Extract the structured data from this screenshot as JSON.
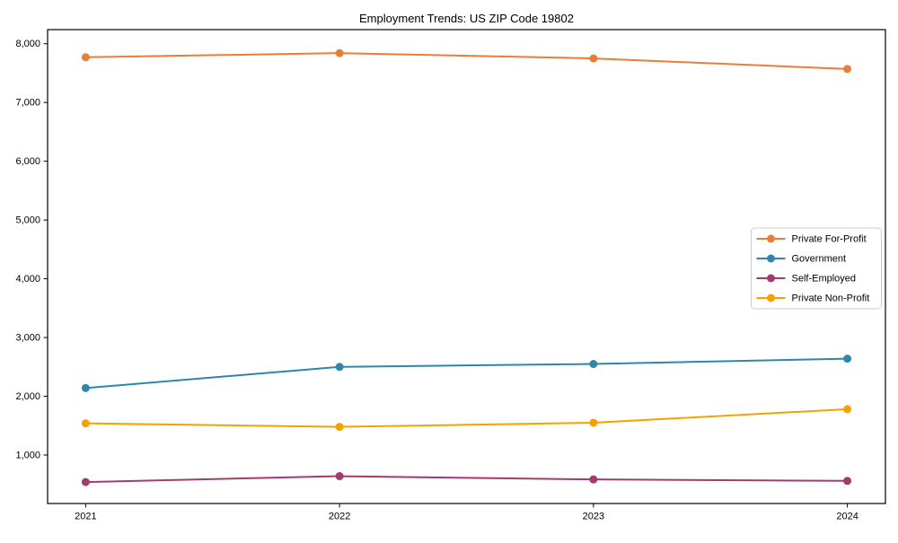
{
  "chart_data": {
    "type": "line",
    "title": "Employment Trends: US ZIP Code 19802",
    "xlabel": "",
    "ylabel": "",
    "x": [
      2021,
      2022,
      2023,
      2024
    ],
    "x_tick_labels": [
      "2021",
      "2022",
      "2023",
      "2024"
    ],
    "y_ticks": [
      1000,
      2000,
      3000,
      4000,
      5000,
      6000,
      7000,
      8000
    ],
    "y_tick_labels": [
      "1,000",
      "2,000",
      "3,000",
      "4,000",
      "5,000",
      "6,000",
      "7,000",
      "8,000"
    ],
    "xlim": [
      2020.85,
      2024.15
    ],
    "ylim": [
      175,
      8240
    ],
    "grid": false,
    "legend_position": "center-right",
    "background_color": "#ffffff",
    "axes_color": "#000000",
    "series": [
      {
        "name": "Private For-Profit",
        "color": "#E87E3A",
        "values": [
          7770,
          7840,
          7750,
          7570
        ]
      },
      {
        "name": "Government",
        "color": "#2E86AB",
        "values": [
          2140,
          2500,
          2550,
          2640
        ]
      },
      {
        "name": "Self-Employed",
        "color": "#A23B72",
        "values": [
          540,
          640,
          585,
          560
        ]
      },
      {
        "name": "Private Non-Profit",
        "color": "#F5A201",
        "values": [
          1540,
          1480,
          1550,
          1780
        ]
      }
    ]
  }
}
